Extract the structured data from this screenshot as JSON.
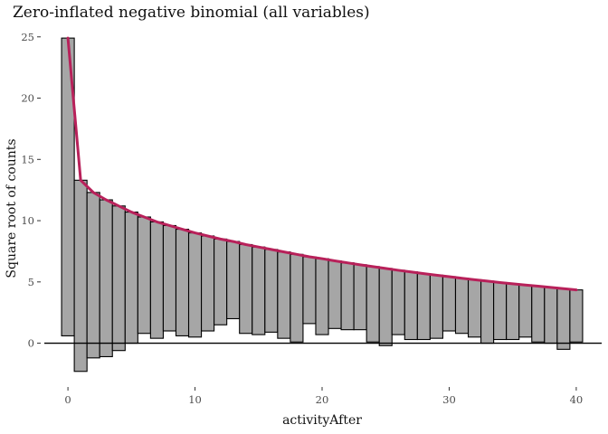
{
  "chart_data": {
    "type": "bar",
    "subtype": "hanging-rootogram",
    "title": "Zero-inflated negative binomial (all variables)",
    "xlabel": "activityAfter",
    "ylabel": "Square root of counts",
    "xlim": [
      -2,
      42
    ],
    "ylim": [
      -3.5,
      25.5
    ],
    "xticks": [
      0,
      10,
      20,
      30,
      40
    ],
    "yticks": [
      0,
      5,
      10,
      15,
      20,
      25
    ],
    "grid": false,
    "legend": "none",
    "colors": {
      "bar_fill": "#a6a6a6",
      "bar_stroke": "#000000",
      "curve": "#b8215a",
      "zero_line": "#000000"
    },
    "x": [
      0,
      1,
      2,
      3,
      4,
      5,
      6,
      7,
      8,
      9,
      10,
      11,
      12,
      13,
      14,
      15,
      16,
      17,
      18,
      19,
      20,
      21,
      22,
      23,
      24,
      25,
      26,
      27,
      28,
      29,
      30,
      31,
      32,
      33,
      34,
      35,
      36,
      37,
      38,
      39,
      40
    ],
    "expected": [
      24.9,
      13.3,
      12.3,
      11.7,
      11.2,
      10.7,
      10.3,
      9.9,
      9.6,
      9.3,
      9.0,
      8.75,
      8.5,
      8.3,
      8.05,
      7.85,
      7.65,
      7.45,
      7.25,
      7.05,
      6.9,
      6.72,
      6.56,
      6.4,
      6.25,
      6.1,
      5.95,
      5.82,
      5.68,
      5.55,
      5.43,
      5.3,
      5.18,
      5.07,
      4.95,
      4.85,
      4.75,
      4.65,
      4.55,
      4.45,
      4.35
    ],
    "bar_bottom": [
      0.6,
      -2.3,
      -1.2,
      -1.1,
      -0.6,
      0.0,
      0.8,
      0.4,
      1.0,
      0.6,
      0.5,
      1.0,
      1.5,
      2.0,
      0.8,
      0.7,
      0.9,
      0.4,
      0.1,
      1.6,
      0.7,
      1.2,
      1.1,
      1.1,
      0.1,
      -0.2,
      0.7,
      0.3,
      0.3,
      0.4,
      1.0,
      0.8,
      0.5,
      0.0,
      0.3,
      0.3,
      0.5,
      0.1,
      0.0,
      -0.5,
      0.1
    ]
  }
}
